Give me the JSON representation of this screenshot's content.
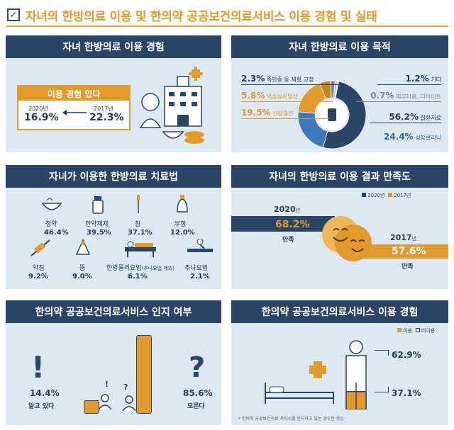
{
  "title": "자녀의 한방의료 이용 및 한의약 공공보건의료서비스 이용 경험 및 실태",
  "colors": {
    "navy": "#2b4566",
    "orange": "#e39a2c",
    "blue": "#2f6aa8",
    "panel": "#dce9f3"
  },
  "panel1": {
    "header": "자녀 한방의료 이용 경험",
    "box_title": "이용 경험 있다",
    "y2020_label": "2020년",
    "y2020_value": "16.9%",
    "y2017_label": "2017년",
    "y2017_value": "22.3%"
  },
  "panel2": {
    "header": "자녀 한방의료 이용 목적",
    "items": [
      {
        "pct": "2.3%",
        "label": "족만증 등 체형 교정"
      },
      {
        "pct": "5.8%",
        "label": "학습능력향상"
      },
      {
        "pct": "19.5%",
        "label": "건강증진"
      },
      {
        "pct": "1.2%",
        "label": "기타"
      },
      {
        "pct": "0.7%",
        "label": "피부미용, 다이어트"
      },
      {
        "pct": "56.2%",
        "label": "질환치료"
      },
      {
        "pct": "24.4%",
        "label": "성장클리닉"
      }
    ]
  },
  "panel3": {
    "header": "자녀가 이용한 한방의료 치료법",
    "items": [
      {
        "label": "첩약",
        "value": "46.4%"
      },
      {
        "label": "한약제제",
        "value": "39.5%"
      },
      {
        "label": "침",
        "value": "37.1%"
      },
      {
        "label": "부항",
        "value": "12.0%"
      },
      {
        "label": "약침",
        "value": "9.2%"
      },
      {
        "label": "뜸",
        "value": "9.0%"
      },
      {
        "label": "한방물리요법",
        "note": "(추나요법 제외)",
        "value": "6.1%"
      },
      {
        "label": "추나요법",
        "value": "2.1%"
      }
    ]
  },
  "panel4": {
    "header": "자녀의 한방의료 이용 결과 만족도",
    "legend": [
      "2020년",
      "2017년"
    ],
    "y2020_year": "2020",
    "y2020_suffix": "년",
    "y2020_value": "68.2%",
    "y2020_label": "만족",
    "y2017_year": "2017",
    "y2017_suffix": "년",
    "y2017_value": "57.6%",
    "y2017_label": "만족"
  },
  "panel5": {
    "header": "한의약 공공보건의료서비스 인지 여부",
    "know_value": "14.4%",
    "know_label": "알고 있다",
    "dont_value": "85.6%",
    "dont_label": "모른다"
  },
  "panel6": {
    "header": "한의약 공공보건의료서비스 이용 경험",
    "legend": [
      "이용",
      "비이용"
    ],
    "nonuse_value": "62.9%",
    "use_value": "37.1%",
    "footnote": "* 한의약 공공보건의료 서비스를 인지하고 있는 경우만 응답"
  },
  "chart_data": [
    {
      "type": "bar",
      "categories": [
        "2020년",
        "2017년"
      ],
      "values": [
        16.9,
        22.3
      ],
      "title": "자녀 한방의료 이용 경험"
    },
    {
      "type": "pie",
      "categories": [
        "질환치료",
        "성장클리닉",
        "건강증진",
        "학습능력향상",
        "족만증 등 체형 교정",
        "기타",
        "피부미용, 다이어트"
      ],
      "values": [
        56.2,
        24.4,
        19.5,
        5.8,
        2.3,
        1.2,
        0.7
      ],
      "title": "자녀 한방의료 이용 목적"
    },
    {
      "type": "bar",
      "categories": [
        "첩약",
        "한약제제",
        "침",
        "부항",
        "약침",
        "뜸",
        "한방물리요법",
        "추나요법"
      ],
      "values": [
        46.4,
        39.5,
        37.1,
        12.0,
        9.2,
        9.0,
        6.1,
        2.1
      ],
      "title": "자녀가 이용한 한방의료 치료법"
    },
    {
      "type": "bar",
      "categories": [
        "2020년",
        "2017년"
      ],
      "values": [
        68.2,
        57.6
      ],
      "title": "자녀의 한방의료 이용 결과 만족도"
    },
    {
      "type": "bar",
      "categories": [
        "알고 있다",
        "모른다"
      ],
      "values": [
        14.4,
        85.6
      ],
      "title": "한의약 공공보건의료서비스 인지 여부"
    },
    {
      "type": "bar",
      "categories": [
        "비이용",
        "이용"
      ],
      "values": [
        62.9,
        37.1
      ],
      "title": "한의약 공공보건의료서비스 이용 경험"
    }
  ]
}
